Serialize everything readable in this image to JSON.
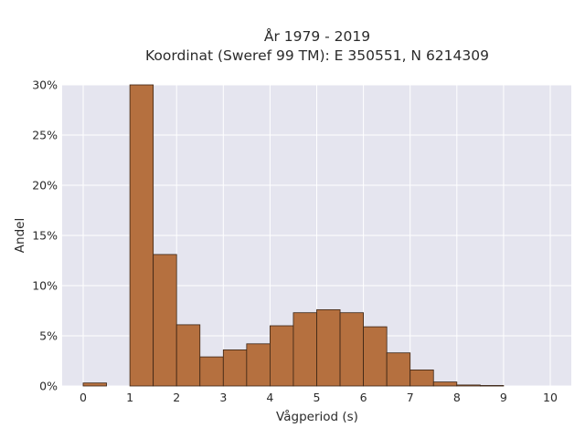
{
  "chart_data": {
    "type": "bar",
    "title_line1": "År 1979 - 2019",
    "title_line2": "Koordinat (Sweref 99 TM): E 350551, N 6214309",
    "xlabel": "Vågperiod (s)",
    "ylabel": "Andel",
    "xlim": [
      -0.45,
      10.45
    ],
    "ylim": [
      0,
      0.3
    ],
    "x_ticks": [
      "0",
      "1",
      "2",
      "3",
      "4",
      "5",
      "6",
      "7",
      "8",
      "9",
      "10"
    ],
    "y_ticks": [
      "0%",
      "5%",
      "10%",
      "15%",
      "20%",
      "25%",
      "30%"
    ],
    "bin_width": 0.5,
    "bins": [
      {
        "x0": 0.0,
        "value": 0.003
      },
      {
        "x0": 0.5,
        "value": 0.0
      },
      {
        "x0": 1.0,
        "value": 0.3
      },
      {
        "x0": 1.5,
        "value": 0.131
      },
      {
        "x0": 2.0,
        "value": 0.061
      },
      {
        "x0": 2.5,
        "value": 0.029
      },
      {
        "x0": 3.0,
        "value": 0.036
      },
      {
        "x0": 3.5,
        "value": 0.042
      },
      {
        "x0": 4.0,
        "value": 0.06
      },
      {
        "x0": 4.5,
        "value": 0.073
      },
      {
        "x0": 5.0,
        "value": 0.076
      },
      {
        "x0": 5.5,
        "value": 0.073
      },
      {
        "x0": 6.0,
        "value": 0.059
      },
      {
        "x0": 6.5,
        "value": 0.033
      },
      {
        "x0": 7.0,
        "value": 0.016
      },
      {
        "x0": 7.5,
        "value": 0.004
      },
      {
        "x0": 8.0,
        "value": 0.001
      },
      {
        "x0": 8.5,
        "value": 0.0005
      }
    ],
    "grid": true,
    "colors": {
      "bar": "#b5703f",
      "bar_edge": "#3a2414",
      "plot_bg": "#e5e5ef",
      "grid": "#ffffff"
    }
  }
}
